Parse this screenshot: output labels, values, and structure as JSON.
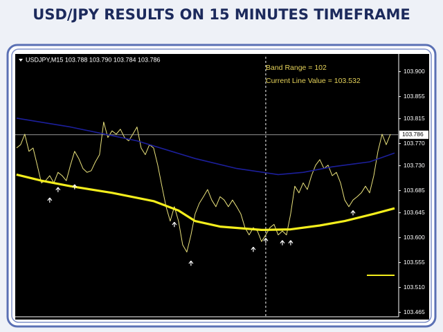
{
  "chart_data": {
    "type": "line",
    "title": "USD/JPY RESULTS ON 15 MINUTES TIMEFRAME",
    "header": "USDJPY,M15  103.788 103.790 103.784 103.786",
    "annotations": [
      "Band Range = 102",
      "Current Line Value = 103.532"
    ],
    "current_price": 103.786,
    "cursor_x": 60,
    "xlim": [
      -0.3,
      92
    ],
    "ylim": [
      103.457,
      103.932
    ],
    "yticks": [
      {
        "value": 103.9,
        "label": "103.900"
      },
      {
        "value": 103.855,
        "label": "103.855"
      },
      {
        "value": 103.815,
        "label": "103.815"
      },
      {
        "value": 103.77,
        "label": "103.770"
      },
      {
        "value": 103.73,
        "label": "103.730"
      },
      {
        "value": 103.685,
        "label": "103.685"
      },
      {
        "value": 103.645,
        "label": "103.645"
      },
      {
        "value": 103.6,
        "label": "103.600"
      },
      {
        "value": 103.555,
        "label": "103.555"
      },
      {
        "value": 103.51,
        "label": "103.510"
      },
      {
        "value": 103.465,
        "label": "103.465"
      }
    ],
    "series": [
      {
        "color": "#ebe37c",
        "width": 1,
        "values": [
          103.762,
          103.768,
          103.787,
          103.756,
          103.762,
          103.731,
          103.699,
          103.703,
          103.712,
          103.699,
          103.718,
          103.712,
          103.703,
          103.731,
          103.756,
          103.743,
          103.725,
          103.718,
          103.721,
          103.737,
          103.75,
          103.809,
          103.781,
          103.793,
          103.787,
          103.796,
          103.781,
          103.775,
          103.787,
          103.8,
          103.762,
          103.75,
          103.768,
          103.762,
          103.731,
          103.693,
          103.656,
          103.63,
          103.656,
          103.63,
          103.587,
          103.574,
          103.605,
          103.643,
          103.662,
          103.674,
          103.687,
          103.668,
          103.656,
          103.674,
          103.668,
          103.656,
          103.668,
          103.656,
          103.643,
          103.618,
          103.605,
          103.618,
          103.612,
          103.593,
          103.605,
          103.618,
          103.624,
          103.605,
          103.612,
          103.605,
          103.643,
          103.693,
          103.681,
          103.699,
          103.687,
          103.712,
          103.731,
          103.741,
          103.725,
          103.731,
          103.712,
          103.718,
          103.699,
          103.668,
          103.656,
          103.668,
          103.674,
          103.681,
          103.693,
          103.681,
          103.712,
          103.756,
          103.787,
          103.768,
          103.787
        ]
      },
      {
        "color": "#1c1f9c",
        "width": 1.6,
        "x": [
          0,
          13,
          29,
          43,
          53,
          63,
          69,
          76,
          85,
          91
        ],
        "values": [
          103.816,
          103.8,
          103.775,
          103.743,
          103.725,
          103.714,
          103.718,
          103.728,
          103.737,
          103.753
        ]
      },
      {
        "color": "#f4ee1c",
        "width": 3.2,
        "x": [
          0,
          6,
          13,
          23,
          33,
          39,
          43,
          49,
          59,
          66,
          73,
          79,
          86,
          91
        ],
        "values": [
          103.714,
          103.703,
          103.693,
          103.681,
          103.666,
          103.649,
          103.63,
          103.62,
          103.614,
          103.615,
          103.622,
          103.63,
          103.643,
          103.653
        ]
      }
    ],
    "markers": {
      "color": "#ffffff",
      "x": [
        8,
        10,
        14,
        38,
        42,
        57,
        60,
        64,
        66,
        81
      ],
      "values": [
        103.672,
        103.691,
        103.696,
        103.628,
        103.558,
        103.583,
        103.599,
        103.595,
        103.595,
        103.649
      ]
    }
  }
}
